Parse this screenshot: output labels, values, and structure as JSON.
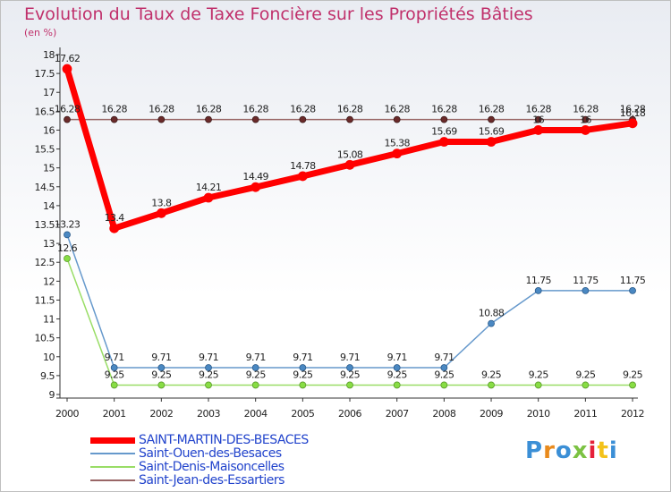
{
  "chart_data": {
    "type": "line",
    "title": "Evolution du Taux de Taxe Foncière sur les Propriétés Bâties",
    "ylabel": "(en %)",
    "xlabel": "",
    "ylim": [
      9,
      18
    ],
    "ytick_step": 0.5,
    "grid": false,
    "categories": [
      "2000",
      "2001",
      "2002",
      "2003",
      "2004",
      "2005",
      "2006",
      "2007",
      "2008",
      "2009",
      "2010",
      "2011",
      "2012"
    ],
    "series": [
      {
        "name": "SAINT-MARTIN-DES-BESACES",
        "color": "#ff0000",
        "values": [
          17.62,
          13.4,
          13.8,
          14.21,
          14.49,
          14.78,
          15.08,
          15.38,
          15.69,
          15.69,
          16,
          16,
          16.18
        ],
        "labels": [
          "17.62",
          "13.4",
          "13.8",
          "14.21",
          "14.49",
          "14.78",
          "15.08",
          "15.38",
          "15.69",
          "15.69",
          "16",
          "16",
          "16.18"
        ]
      },
      {
        "name": "Saint-Ouen-des-Besaces",
        "color": "#6699cc",
        "values": [
          13.23,
          9.71,
          9.71,
          9.71,
          9.71,
          9.71,
          9.71,
          9.71,
          9.71,
          10.88,
          11.75,
          11.75,
          11.75
        ],
        "labels": [
          "13.23",
          "9.71",
          "9.71",
          "9.71",
          "9.71",
          "9.71",
          "9.71",
          "9.71",
          "9.71",
          "10.88",
          "11.75",
          "11.75",
          "11.75"
        ]
      },
      {
        "name": "Saint-Denis-Maisoncelles",
        "color": "#99dd66",
        "values": [
          12.6,
          9.25,
          9.25,
          9.25,
          9.25,
          9.25,
          9.25,
          9.25,
          9.25,
          9.25,
          9.25,
          9.25,
          9.25
        ],
        "labels": [
          "12.6",
          "9.25",
          "9.25",
          "9.25",
          "9.25",
          "9.25",
          "9.25",
          "9.25",
          "9.25",
          "9.25",
          "9.25",
          "9.25",
          "9.25"
        ]
      },
      {
        "name": "Saint-Jean-des-Essartiers",
        "color": "#996666",
        "values": [
          16.28,
          16.28,
          16.28,
          16.28,
          16.28,
          16.28,
          16.28,
          16.28,
          16.28,
          16.28,
          16.28,
          16.28,
          16.28
        ],
        "labels": [
          "16.28",
          "16.28",
          "16.28",
          "16.28",
          "16.28",
          "16.28",
          "16.28",
          "16.28",
          "16.28",
          "16.28",
          "16.28",
          "16.28",
          "16.28"
        ]
      }
    ]
  },
  "logo": {
    "text": "Proxiti",
    "letter_colors": [
      "#3b8fd6",
      "#e98a1c",
      "#3b8fd6",
      "#7cc243",
      "#e5203a",
      "#f3c21a",
      "#3b8fd6"
    ]
  }
}
